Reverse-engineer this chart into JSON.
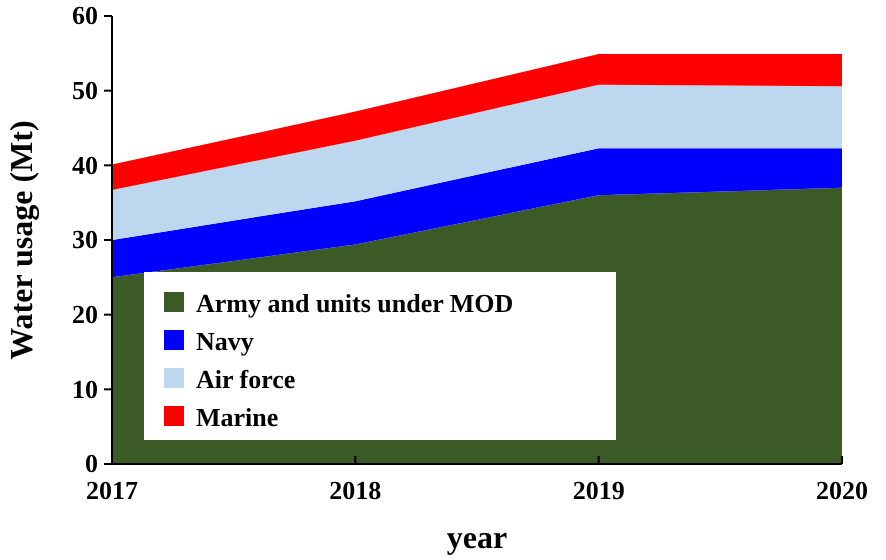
{
  "chart_data": {
    "type": "area",
    "stacked": true,
    "xlabel": "year",
    "ylabel": "Water usage (Mt)",
    "x": [
      2017,
      2018,
      2019,
      2020
    ],
    "series": [
      {
        "name": "Army and units under MOD",
        "color": "#3c5a26",
        "values": [
          25,
          29.4,
          36,
          37
        ]
      },
      {
        "name": "Navy",
        "color": "#0000ff",
        "values": [
          5,
          5.8,
          6.3,
          5.3
        ]
      },
      {
        "name": "Air force",
        "color": "#bdd7ee",
        "values": [
          6.7,
          8.1,
          8.5,
          8.3
        ]
      },
      {
        "name": "Marine",
        "color": "#ff0000",
        "values": [
          3.4,
          3.9,
          4.1,
          4.3
        ]
      }
    ],
    "xlim": [
      2017,
      2020
    ],
    "xticks": [
      2017,
      2018,
      2019,
      2020
    ],
    "ylim": [
      0,
      60
    ],
    "yticks": [
      0,
      10,
      20,
      30,
      40,
      50,
      60
    ],
    "grid": false,
    "legend": "bottom left"
  }
}
